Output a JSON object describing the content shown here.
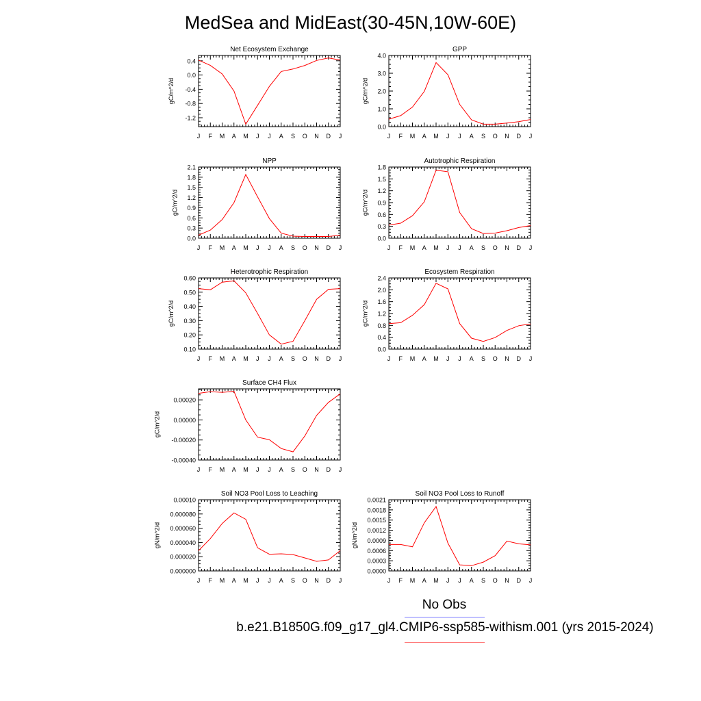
{
  "title": "MedSea and MidEast(30-45N,10W-60E)",
  "legend": {
    "obs_label": "No Obs",
    "obs_color": "#7a7aff",
    "model_label": "b.e21.B1850G.f09_g17_gl4.CMIP6-ssp585-withism.001 (yrs 2015-2024)",
    "model_color": "#ff7a7a"
  },
  "line_color": "#ff0000",
  "chart_data": [
    {
      "type": "line",
      "title": "Net Ecosystem Exchange",
      "ylabel": "gC/m^2/d",
      "categories": [
        "J",
        "F",
        "M",
        "A",
        "M",
        "J",
        "J",
        "A",
        "S",
        "O",
        "N",
        "D",
        "J"
      ],
      "ylim": [
        -1.45,
        0.55
      ],
      "yticks": [
        "0.4",
        "0.0",
        "-0.4",
        "-0.8",
        "-1.2"
      ],
      "ytick_values": [
        0.4,
        0.0,
        -0.4,
        -0.8,
        -1.2
      ],
      "values": [
        0.42,
        0.27,
        0.03,
        -0.45,
        -1.38,
        -0.85,
        -0.32,
        0.1,
        0.17,
        0.27,
        0.41,
        0.48,
        0.42
      ]
    },
    {
      "type": "line",
      "title": "GPP",
      "ylabel": "gC/m^2/d",
      "categories": [
        "J",
        "F",
        "M",
        "A",
        "M",
        "J",
        "J",
        "A",
        "S",
        "O",
        "N",
        "D",
        "J"
      ],
      "ylim": [
        0.0,
        4.0
      ],
      "yticks": [
        "4.0",
        "3.0",
        "2.0",
        "1.0",
        "0.0"
      ],
      "ytick_values": [
        4.0,
        3.0,
        2.0,
        1.0,
        0.0
      ],
      "values": [
        0.42,
        0.62,
        1.1,
        1.98,
        3.6,
        2.92,
        1.25,
        0.38,
        0.14,
        0.14,
        0.2,
        0.28,
        0.4
      ]
    },
    {
      "type": "line",
      "title": "NPP",
      "ylabel": "gC/m^2/d",
      "categories": [
        "J",
        "F",
        "M",
        "A",
        "M",
        "J",
        "J",
        "A",
        "S",
        "O",
        "N",
        "D",
        "J"
      ],
      "ylim": [
        0.0,
        2.1
      ],
      "yticks": [
        "2.1",
        "1.8",
        "1.5",
        "1.2",
        "0.9",
        "0.6",
        "0.3",
        "0.0"
      ],
      "ytick_values": [
        2.1,
        1.8,
        1.5,
        1.2,
        0.9,
        0.6,
        0.3,
        0.0
      ],
      "values": [
        0.09,
        0.24,
        0.55,
        1.05,
        1.88,
        1.22,
        0.58,
        0.15,
        0.06,
        0.05,
        0.05,
        0.05,
        0.09
      ]
    },
    {
      "type": "line",
      "title": "Autotrophic Respiration",
      "ylabel": "gC/m^2/d",
      "categories": [
        "J",
        "F",
        "M",
        "A",
        "M",
        "J",
        "J",
        "A",
        "S",
        "O",
        "N",
        "D",
        "J"
      ],
      "ylim": [
        0.0,
        1.8
      ],
      "yticks": [
        "1.8",
        "1.5",
        "1.2",
        "0.9",
        "0.6",
        "0.3",
        "0.0"
      ],
      "ytick_values": [
        1.8,
        1.5,
        1.2,
        0.9,
        0.6,
        0.3,
        0.0
      ],
      "values": [
        0.33,
        0.38,
        0.57,
        0.92,
        1.72,
        1.68,
        0.65,
        0.24,
        0.12,
        0.13,
        0.19,
        0.27,
        0.32
      ]
    },
    {
      "type": "line",
      "title": "Heterotrophic Respiration",
      "ylabel": "gC/m^2/d",
      "categories": [
        "J",
        "F",
        "M",
        "A",
        "M",
        "J",
        "J",
        "A",
        "S",
        "O",
        "N",
        "D",
        "J"
      ],
      "ylim": [
        0.1,
        0.6
      ],
      "yticks": [
        "0.60",
        "0.50",
        "0.40",
        "0.30",
        "0.20",
        "0.10"
      ],
      "ytick_values": [
        0.6,
        0.5,
        0.4,
        0.3,
        0.2,
        0.1
      ],
      "values": [
        0.525,
        0.517,
        0.57,
        0.58,
        0.495,
        0.35,
        0.2,
        0.135,
        0.155,
        0.3,
        0.45,
        0.52,
        0.525
      ]
    },
    {
      "type": "line",
      "title": "Ecosystem Respiration",
      "ylabel": "gC/m^2/d",
      "categories": [
        "J",
        "F",
        "M",
        "A",
        "M",
        "J",
        "J",
        "A",
        "S",
        "O",
        "N",
        "D",
        "J"
      ],
      "ylim": [
        0.0,
        2.4
      ],
      "yticks": [
        "2.4",
        "2.0",
        "1.6",
        "1.2",
        "0.8",
        "0.4",
        "0.0"
      ],
      "ytick_values": [
        2.4,
        2.0,
        1.6,
        1.2,
        0.8,
        0.4,
        0.0
      ],
      "values": [
        0.86,
        0.89,
        1.14,
        1.5,
        2.22,
        2.03,
        0.86,
        0.37,
        0.26,
        0.39,
        0.63,
        0.79,
        0.85
      ]
    },
    {
      "type": "line",
      "title": "Surface CH4 Flux",
      "ylabel": "gC/m^2/d",
      "categories": [
        "J",
        "F",
        "M",
        "A",
        "M",
        "J",
        "J",
        "A",
        "S",
        "O",
        "N",
        "D",
        "J"
      ],
      "ylim": [
        -0.0004,
        0.00031
      ],
      "yticks": [
        "0.00020",
        "0.00000",
        "-0.00020",
        "-0.00040"
      ],
      "ytick_values": [
        0.0002,
        0.0,
        -0.0002,
        -0.0004
      ],
      "values": [
        0.000265,
        0.000282,
        0.000275,
        0.000285,
        0.0,
        -0.000172,
        -0.000198,
        -0.000285,
        -0.000318,
        -0.00016,
        4.5e-05,
        0.000175,
        0.00026
      ]
    },
    {
      "type": "line",
      "title": "Soil NO3 Pool Loss to Leaching",
      "ylabel": "gN/m^2/d",
      "categories": [
        "J",
        "F",
        "M",
        "A",
        "M",
        "J",
        "J",
        "A",
        "S",
        "O",
        "N",
        "D",
        "J"
      ],
      "ylim": [
        0.0,
        0.0001
      ],
      "yticks": [
        "0.00010",
        "0.000080",
        "0.000060",
        "0.000040",
        "0.000020",
        "0.000000"
      ],
      "ytick_values": [
        0.0001,
        8e-05,
        6e-05,
        4e-05,
        2e-05,
        0.0
      ],
      "values": [
        2.85e-05,
        4.55e-05,
        6.65e-05,
        8.15e-05,
        7.25e-05,
        3.25e-05,
        2.35e-05,
        2.4e-05,
        2.3e-05,
        1.83e-05,
        1.35e-05,
        1.55e-05,
        2.85e-05
      ]
    },
    {
      "type": "line",
      "title": "Soil NO3 Pool Loss to Runoff",
      "ylabel": "gN/m^2/d",
      "categories": [
        "J",
        "F",
        "M",
        "A",
        "M",
        "J",
        "J",
        "A",
        "S",
        "O",
        "N",
        "D",
        "J"
      ],
      "ylim": [
        0.0,
        0.0021
      ],
      "yticks": [
        "0.0021",
        "0.0018",
        "0.0015",
        "0.0012",
        "0.0009",
        "0.0006",
        "0.0003",
        "0.0000"
      ],
      "ytick_values": [
        0.0021,
        0.0018,
        0.0015,
        0.0012,
        0.0009,
        0.0006,
        0.0003,
        0.0
      ],
      "values": [
        0.00078,
        0.00078,
        0.00071,
        0.00142,
        0.0019,
        0.00082,
        0.00018,
        0.000155,
        0.00026,
        0.00045,
        0.00088,
        0.0008,
        0.00077
      ]
    }
  ]
}
